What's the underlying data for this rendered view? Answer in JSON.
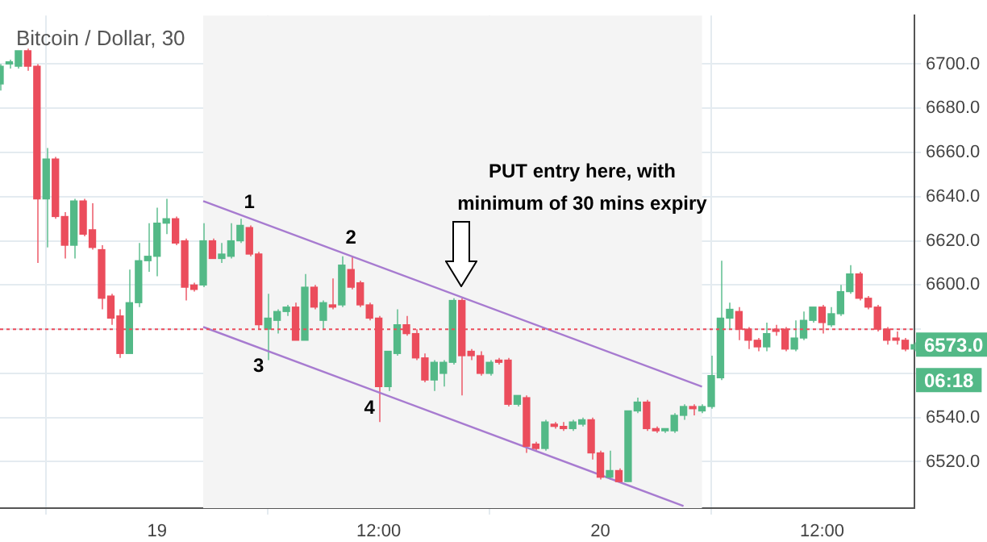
{
  "chart_data": {
    "type": "candlestick",
    "title": "Bitcoin / Dollar, 30",
    "x": [
      "--10-18T15:30",
      "--10-18T16:00",
      "--10-18T16:30",
      "--10-18T17:00",
      "--10-18T17:30",
      "--10-18T18:00",
      "--10-18T18:30",
      "--10-18T19:00",
      "--10-18T19:30",
      "--10-18T20:00",
      "--10-18T20:30",
      "--10-18T21:00",
      "--10-18T21:30",
      "--10-18T22:00",
      "--10-18T22:30",
      "--10-18T23:00",
      "--10-18T23:30",
      "--10-19T00:00",
      "--10-19T00:30",
      "--10-19T01:00",
      "--10-19T01:30",
      "--10-19T02:00",
      "--10-19T02:30",
      "--10-19T03:00",
      "--10-19T03:30",
      "--10-19T04:00",
      "--10-19T04:30",
      "--10-19T05:00",
      "--10-19T05:30",
      "--10-19T06:00",
      "--10-19T06:30",
      "--10-19T07:00",
      "--10-19T07:30",
      "--10-19T08:00",
      "--10-19T08:30",
      "--10-19T09:00",
      "--10-19T09:30",
      "--10-19T10:00",
      "--10-19T10:30",
      "--10-19T11:00",
      "--10-19T11:30",
      "--10-19T12:00",
      "--10-19T12:30",
      "--10-19T13:00",
      "--10-19T13:30",
      "--10-19T14:00",
      "--10-19T14:30",
      "--10-19T15:00",
      "--10-19T15:30",
      "--10-19T16:00",
      "--10-19T16:30",
      "--10-19T17:00",
      "--10-19T17:30",
      "--10-19T18:00",
      "--10-19T18:30",
      "--10-19T19:00",
      "--10-19T19:30",
      "--10-19T20:00",
      "--10-19T20:30",
      "--10-19T21:00",
      "--10-19T21:30",
      "--10-19T22:00",
      "--10-19T22:30",
      "--10-19T23:00",
      "--10-19T23:30",
      "--10-20T00:00",
      "--10-20T00:30",
      "--10-20T01:00",
      "--10-20T01:30",
      "--10-20T02:00",
      "--10-20T02:30",
      "--10-20T03:00",
      "--10-20T03:30",
      "--10-20T04:00",
      "--10-20T04:30",
      "--10-20T05:00",
      "--10-20T05:30",
      "--10-20T06:00",
      "--10-20T06:30",
      "--10-20T07:00",
      "--10-20T07:30",
      "--10-20T08:00",
      "--10-20T08:30",
      "--10-20T09:00",
      "--10-20T09:30",
      "--10-20T10:00",
      "--10-20T10:30",
      "--10-20T11:00",
      "--10-20T11:30",
      "--10-20T12:00",
      "--10-20T12:30",
      "--10-20T13:00",
      "--10-20T13:30",
      "--10-20T14:00",
      "--10-20T14:30",
      "--10-20T15:00",
      "--10-20T15:30",
      "--10-20T16:00",
      "--10-20T16:30",
      "--10-20T17:00"
    ],
    "ohlc": [
      [
        6691,
        6700,
        6688,
        6699
      ],
      [
        6700,
        6702,
        6698,
        6701
      ],
      [
        6699,
        6706,
        6698,
        6706
      ],
      [
        6706,
        6707,
        6697,
        6699
      ],
      [
        6699,
        6700,
        6610,
        6639
      ],
      [
        6639,
        6662,
        6617,
        6657
      ],
      [
        6657,
        6658,
        6630,
        6631
      ],
      [
        6631,
        6633,
        6612,
        6618
      ],
      [
        6618,
        6639,
        6612,
        6638
      ],
      [
        6638,
        6639,
        6622,
        6623
      ],
      [
        6625,
        6637,
        6616,
        6617
      ],
      [
        6616,
        6618,
        6589,
        6594
      ],
      [
        6595,
        6596,
        6582,
        6585
      ],
      [
        6586,
        6589,
        6567,
        6569
      ],
      [
        6569,
        6607,
        6569,
        6592
      ],
      [
        6592,
        6619,
        6590,
        6611
      ],
      [
        6611,
        6628,
        6606,
        6613
      ],
      [
        6613,
        6635,
        6604,
        6628
      ],
      [
        6628,
        6639,
        6623,
        6630
      ],
      [
        6630,
        6631,
        6618,
        6619
      ],
      [
        6620,
        6621,
        6593,
        6599
      ],
      [
        6600,
        6601,
        6597,
        6598
      ],
      [
        6600,
        6628,
        6599,
        6620
      ],
      [
        6620,
        6621,
        6612,
        6612
      ],
      [
        6612,
        6619,
        6610,
        6614
      ],
      [
        6613,
        6628,
        6612,
        6620
      ],
      [
        6620,
        6630,
        6619,
        6627
      ],
      [
        6626,
        6627,
        6613,
        6614
      ],
      [
        6614,
        6615,
        6580,
        6582
      ],
      [
        6580,
        6596,
        6566,
        6585
      ],
      [
        6584,
        6589,
        6578,
        6588
      ],
      [
        6588,
        6591,
        6586,
        6590
      ],
      [
        6590,
        6592,
        6575,
        6575
      ],
      [
        6575,
        6605,
        6575,
        6599
      ],
      [
        6599,
        6600,
        6589,
        6590
      ],
      [
        6584,
        6593,
        6580,
        6592
      ],
      [
        6591,
        6603,
        6589,
        6590
      ],
      [
        6591,
        6613,
        6590,
        6609
      ],
      [
        6607,
        6613,
        6598,
        6599
      ],
      [
        6601,
        6602,
        6590,
        6591
      ],
      [
        6591,
        6592,
        6584,
        6585
      ],
      [
        6585,
        6586,
        6538,
        6554
      ],
      [
        6554,
        6570,
        6552,
        6570
      ],
      [
        6569,
        6589,
        6568,
        6582
      ],
      [
        6582,
        6586,
        6577,
        6578
      ],
      [
        6578,
        6580,
        6566,
        6567
      ],
      [
        6567,
        6569,
        6556,
        6557
      ],
      [
        6557,
        6566,
        6552,
        6565
      ],
      [
        6560,
        6566,
        6554,
        6565
      ],
      [
        6565,
        6594,
        6564,
        6593
      ],
      [
        6593,
        6594,
        6550,
        6568
      ],
      [
        6570,
        6571,
        6566,
        6568
      ],
      [
        6568,
        6570,
        6559,
        6560
      ],
      [
        6560,
        6566,
        6559,
        6565
      ],
      [
        6566,
        6567,
        6564,
        6565
      ],
      [
        6566,
        6567,
        6545,
        6546
      ],
      [
        6546,
        6550,
        6545,
        6550
      ],
      [
        6549,
        6550,
        6524,
        6527
      ],
      [
        6528,
        6529,
        6525,
        6526
      ],
      [
        6526,
        6539,
        6525,
        6538
      ],
      [
        6537,
        6538,
        6535,
        6536
      ],
      [
        6536,
        6538,
        6534,
        6535
      ],
      [
        6535,
        6539,
        6534,
        6538
      ],
      [
        6537,
        6540,
        6536,
        6539
      ],
      [
        6539,
        6540,
        6521,
        6524
      ],
      [
        6524,
        6525,
        6512,
        6513
      ],
      [
        6513,
        6525,
        6512,
        6516
      ],
      [
        6516,
        6517,
        6511,
        6511
      ],
      [
        6511,
        6543,
        6511,
        6543
      ],
      [
        6543,
        6549,
        6542,
        6547
      ],
      [
        6547,
        6548,
        6534,
        6535
      ],
      [
        6535,
        6536,
        6533,
        6534
      ],
      [
        6534,
        6535,
        6533,
        6535
      ],
      [
        6534,
        6542,
        6533,
        6541
      ],
      [
        6541,
        6546,
        6539,
        6545
      ],
      [
        6545,
        6546,
        6541,
        6544
      ],
      [
        6543,
        6546,
        6542,
        6545
      ],
      [
        6545,
        6568,
        6544,
        6559
      ],
      [
        6558,
        6611,
        6557,
        6585
      ],
      [
        6585,
        6592,
        6580,
        6589
      ],
      [
        6588,
        6590,
        6575,
        6580
      ],
      [
        6580,
        6581,
        6571,
        6575
      ],
      [
        6575,
        6576,
        6570,
        6572
      ],
      [
        6572,
        6583,
        6570,
        6578
      ],
      [
        6580,
        6582,
        6577,
        6579
      ],
      [
        6580,
        6581,
        6570,
        6571
      ],
      [
        6571,
        6584,
        6570,
        6576
      ],
      [
        6576,
        6588,
        6575,
        6584
      ],
      [
        6584,
        6590,
        6583,
        6590
      ],
      [
        6590,
        6591,
        6578,
        6583
      ],
      [
        6582,
        6590,
        6581,
        6587
      ],
      [
        6587,
        6600,
        6586,
        6597
      ],
      [
        6597,
        6609,
        6596,
        6605
      ],
      [
        6605,
        6606,
        6593,
        6594
      ],
      [
        6594,
        6595,
        6589,
        6590
      ],
      [
        6590,
        6591,
        6579,
        6580
      ],
      [
        6580,
        6581,
        6573,
        6575
      ],
      [
        6576,
        6579,
        6573,
        6575
      ],
      [
        6575,
        6576,
        6570,
        6571
      ],
      [
        6571,
        6574,
        6570,
        6573
      ]
    ],
    "colors": [
      "#53b987",
      "#53b987",
      "#53b987",
      "#eb4d5c",
      "#eb4d5c",
      "#53b987",
      "#eb4d5c",
      "#eb4d5c",
      "#53b987",
      "#eb4d5c",
      "#eb4d5c",
      "#eb4d5c",
      "#eb4d5c",
      "#eb4d5c",
      "#53b987",
      "#53b987",
      "#53b987",
      "#53b987",
      "#53b987",
      "#eb4d5c",
      "#eb4d5c",
      "#eb4d5c",
      "#53b987",
      "#eb4d5c",
      "#53b987",
      "#53b987",
      "#53b987",
      "#eb4d5c",
      "#eb4d5c",
      "#53b987",
      "#53b987",
      "#53b987",
      "#eb4d5c",
      "#53b987",
      "#eb4d5c",
      "#53b987",
      "#eb4d5c",
      "#53b987",
      "#eb4d5c",
      "#eb4d5c",
      "#eb4d5c",
      "#eb4d5c",
      "#53b987",
      "#53b987",
      "#eb4d5c",
      "#eb4d5c",
      "#eb4d5c",
      "#53b987",
      "#53b987",
      "#53b987",
      "#eb4d5c",
      "#eb4d5c",
      "#eb4d5c",
      "#53b987",
      "#eb4d5c",
      "#eb4d5c",
      "#53b987",
      "#eb4d5c",
      "#eb4d5c",
      "#53b987",
      "#eb4d5c",
      "#eb4d5c",
      "#53b987",
      "#53b987",
      "#eb4d5c",
      "#eb4d5c",
      "#53b987",
      "#eb4d5c",
      "#53b987",
      "#53b987",
      "#eb4d5c",
      "#eb4d5c",
      "#53b987",
      "#53b987",
      "#53b987",
      "#eb4d5c",
      "#53b987",
      "#53b987",
      "#53b987",
      "#53b987",
      "#eb4d5c",
      "#eb4d5c",
      "#eb4d5c",
      "#53b987",
      "#eb4d5c",
      "#eb4d5c",
      "#53b987",
      "#53b987",
      "#53b987",
      "#eb4d5c",
      "#53b987",
      "#53b987",
      "#53b987",
      "#eb4d5c",
      "#eb4d5c",
      "#eb4d5c",
      "#eb4d5c",
      "#eb4d5c",
      "#eb4d5c",
      "#53b987"
    ],
    "series": [
      {
        "type": "line",
        "color": "#a77bd0",
        "x": [
          "--10-19T02:30",
          "--10-20T05:30"
        ],
        "values": [
          6638,
          6554
        ]
      },
      {
        "type": "line",
        "color": "#a77bd0",
        "x": [
          "--10-19T02:30",
          "--10-20T04:30"
        ],
        "values": [
          6581,
          6500
        ]
      }
    ],
    "xlim": [
      "--10-18T15:30",
      "--10-20T17:00"
    ],
    "xticks": [
      {
        "value": "--10-19T00:00",
        "label": "19"
      },
      {
        "value": "--10-19T12:00",
        "label": "12:00"
      },
      {
        "value": "--10-20T00:00",
        "label": "20"
      },
      {
        "value": "--10-20T12:00",
        "label": "12:00"
      }
    ],
    "ylim": [
      6499,
      6722
    ],
    "yticks": [
      {
        "value": 6520,
        "label": "6520.0"
      },
      {
        "value": 6540,
        "label": "6540.0"
      },
      {
        "value": 6560,
        "label": null
      },
      {
        "value": 6580,
        "label": null
      },
      {
        "value": 6600,
        "label": "6600.0"
      },
      {
        "value": 6620,
        "label": "6620.0"
      },
      {
        "value": 6640,
        "label": "6640.0"
      },
      {
        "value": 6660,
        "label": "6660.0"
      },
      {
        "value": 6680,
        "label": "6680.0"
      },
      {
        "value": 6700,
        "label": "6700.0"
      }
    ],
    "grid": true,
    "ref_lines": [
      {
        "axis": "y",
        "value": 6580,
        "color": "#eb4d5c",
        "line_style": "dotted"
      }
    ],
    "bands": [
      {
        "axis": "x",
        "from": "--10-19T02:30",
        "to": "--10-20T05:30",
        "color": "#f4f4f4"
      }
    ],
    "annotations": [
      {
        "text": "1",
        "x": "--10-19T05:00",
        "y": 6630
      },
      {
        "text": "2",
        "x": "--10-19T10:30",
        "y": 6614
      },
      {
        "text": "3",
        "x": "--10-19T05:30",
        "y": 6572
      },
      {
        "text": "4",
        "x": "--10-19T11:30",
        "y": 6553
      },
      "PUT entry here, with\nminimum of 30 mins expiry",
      "6573.0",
      "06:18"
    ]
  }
}
